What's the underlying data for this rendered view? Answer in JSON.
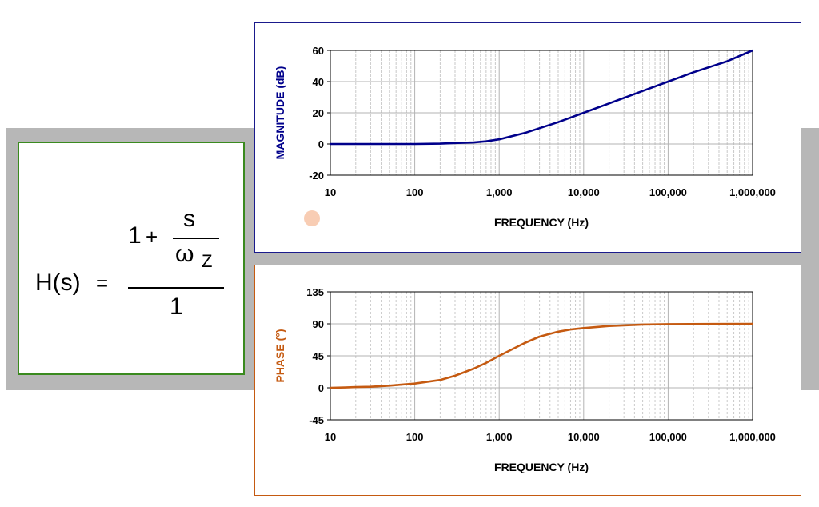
{
  "formula": {
    "lhs": "H(s)",
    "equals": "=",
    "num_one": "1",
    "plus": "+",
    "frac_num": "s",
    "frac_den": "ω",
    "frac_den_sub": "Z",
    "denominator": "1"
  },
  "colors": {
    "magnitude": "#00008b",
    "phase": "#c55a11",
    "band": "#b7b7b7",
    "formula_border": "#3a8a1e",
    "grid_major": "#b3b3b3",
    "grid_minor": "#c9c9c9"
  },
  "chart_data": [
    {
      "type": "line",
      "name": "magnitude",
      "title": "",
      "xlabel": "FREQUENCY (Hz)",
      "ylabel": "MAGNITUDE (dB)",
      "xscale": "log",
      "xlim": [
        10,
        1000000
      ],
      "ylim": [
        -20,
        60
      ],
      "xticks": [
        10,
        100,
        1000,
        10000,
        100000,
        1000000
      ],
      "xtick_labels": [
        "10",
        "100",
        "1,000",
        "10,000",
        "100,000",
        "1,000,000"
      ],
      "yticks": [
        -20,
        0,
        20,
        40,
        60
      ],
      "ytick_labels": [
        "-20",
        "0",
        "20",
        "40",
        "60"
      ],
      "x": [
        10,
        20,
        50,
        100,
        200,
        300,
        500,
        700,
        1000,
        2000,
        5000,
        10000,
        20000,
        50000,
        100000,
        200000,
        500000,
        1000000
      ],
      "y": [
        0,
        0,
        0,
        0,
        0.2,
        0.6,
        1,
        1.7,
        3,
        7,
        14,
        20,
        26,
        34,
        40,
        46,
        53,
        60
      ]
    },
    {
      "type": "line",
      "name": "phase",
      "title": "",
      "xlabel": "FREQUENCY (Hz)",
      "ylabel": "PHASE (°)",
      "xscale": "log",
      "xlim": [
        10,
        1000000
      ],
      "ylim": [
        -45,
        135
      ],
      "xticks": [
        10,
        100,
        1000,
        10000,
        100000,
        1000000
      ],
      "xtick_labels": [
        "10",
        "100",
        "1,000",
        "10,000",
        "100,000",
        "1,000,000"
      ],
      "yticks": [
        -45,
        0,
        45,
        90,
        135
      ],
      "ytick_labels": [
        "-45",
        "0",
        "45",
        "90",
        "135"
      ],
      "x": [
        10,
        15,
        20,
        30,
        50,
        100,
        200,
        300,
        500,
        700,
        1000,
        2000,
        3000,
        5000,
        7000,
        10000,
        20000,
        50000,
        100000,
        1000000
      ],
      "y": [
        0,
        0.5,
        1,
        1.5,
        3,
        6,
        11,
        17,
        27,
        35,
        45,
        63,
        72,
        79,
        82,
        84,
        87,
        89,
        89.5,
        90
      ]
    }
  ]
}
